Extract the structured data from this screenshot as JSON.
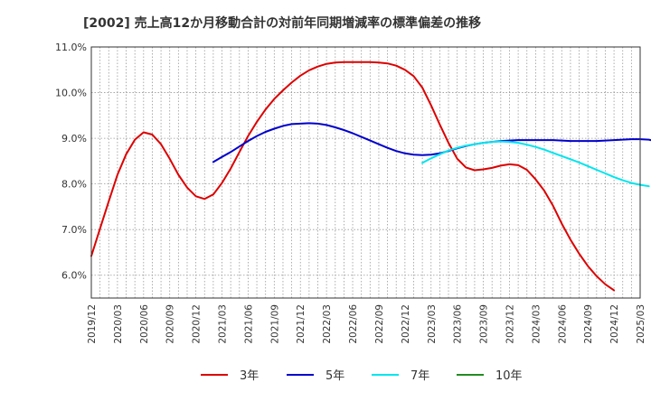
{
  "chart_data": {
    "type": "line",
    "title": "[2002]  売上高12か月移動合計の対前年同期増減率の標準偏差の推移",
    "xlabel": "",
    "ylabel": "",
    "ylim": [
      5.5,
      11.0
    ],
    "yticks": [
      6.0,
      7.0,
      8.0,
      9.0,
      10.0,
      11.0
    ],
    "ytick_labels": [
      "6.0%",
      "7.0%",
      "8.0%",
      "9.0%",
      "10.0%",
      "11.0%"
    ],
    "xtick_labels": [
      "2019/12",
      "2020/03",
      "2020/06",
      "2020/09",
      "2020/12",
      "2021/03",
      "2021/06",
      "2021/09",
      "2021/12",
      "2022/03",
      "2022/06",
      "2022/09",
      "2022/12",
      "2023/03",
      "2023/06",
      "2023/09",
      "2023/12",
      "2024/03",
      "2024/06",
      "2024/09",
      "2024/12",
      "2025/03"
    ],
    "grid": true,
    "legend_position": "bottom",
    "series": [
      {
        "name": "3年",
        "color": "#dd0000",
        "start": "2019/12",
        "values": [
          6.42,
          7.02,
          7.62,
          8.2,
          8.65,
          8.97,
          9.13,
          9.08,
          8.87,
          8.55,
          8.2,
          7.92,
          7.73,
          7.67,
          7.77,
          8.02,
          8.34,
          8.7,
          9.05,
          9.36,
          9.63,
          9.86,
          10.05,
          10.22,
          10.37,
          10.49,
          10.57,
          10.63,
          10.66,
          10.67,
          10.67,
          10.67,
          10.67,
          10.66,
          10.64,
          10.59,
          10.5,
          10.36,
          10.11,
          9.72,
          9.3,
          8.9,
          8.55,
          8.36,
          8.3,
          8.32,
          8.35,
          8.4,
          8.43,
          8.41,
          8.31,
          8.1,
          7.85,
          7.52,
          7.13,
          6.78,
          6.47,
          6.2,
          5.98,
          5.8,
          5.67
        ]
      },
      {
        "name": "5年",
        "color": "#0000cc",
        "start": "2021/02",
        "values": [
          8.48,
          8.59,
          8.7,
          8.82,
          8.94,
          9.05,
          9.14,
          9.21,
          9.27,
          9.31,
          9.32,
          9.33,
          9.32,
          9.29,
          9.24,
          9.18,
          9.11,
          9.03,
          8.95,
          8.87,
          8.79,
          8.72,
          8.67,
          8.64,
          8.63,
          8.64,
          8.67,
          8.72,
          8.78,
          8.83,
          8.87,
          8.9,
          8.92,
          8.94,
          8.95,
          8.96,
          8.96,
          8.96,
          8.96,
          8.96,
          8.95,
          8.94,
          8.94,
          8.94,
          8.94,
          8.95,
          8.96,
          8.97,
          8.98,
          8.98,
          8.97,
          8.92
        ]
      },
      {
        "name": "7年",
        "color": "#00e5ee",
        "start": "2023/02",
        "values": [
          8.46,
          8.56,
          8.65,
          8.73,
          8.79,
          8.84,
          8.87,
          8.9,
          8.92,
          8.93,
          8.92,
          8.9,
          8.86,
          8.81,
          8.75,
          8.68,
          8.61,
          8.54,
          8.47,
          8.39,
          8.31,
          8.23,
          8.15,
          8.08,
          8.02,
          7.98,
          7.95
        ]
      },
      {
        "name": "10年",
        "color": "#228b22",
        "start": "",
        "values": []
      }
    ]
  }
}
